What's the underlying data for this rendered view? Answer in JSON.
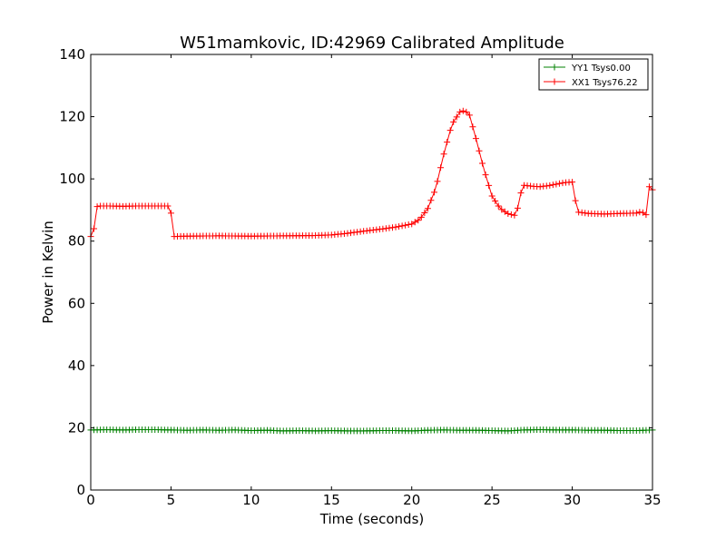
{
  "chart_data": {
    "type": "line",
    "title": "W51mamkovic, ID:42969 Calibrated Amplitude",
    "xlabel": "Time (seconds)",
    "ylabel": "Power in Kelvin",
    "xlim": [
      0,
      35
    ],
    "ylim": [
      0,
      140
    ],
    "xticks": [
      0,
      5,
      10,
      15,
      20,
      25,
      30,
      35
    ],
    "yticks": [
      0,
      20,
      40,
      60,
      80,
      100,
      120,
      140
    ],
    "grid": false,
    "legend_position": "top-right",
    "series": [
      {
        "name": "YY1 Tsys0.00",
        "color": "#008000",
        "marker": "plus",
        "x": [
          0.0,
          1.0,
          2.0,
          3.0,
          4.0,
          5.0,
          6.0,
          7.0,
          8.0,
          9.0,
          10.0,
          11.0,
          12.0,
          13.0,
          14.0,
          15.0,
          16.0,
          17.0,
          18.0,
          19.0,
          20.0,
          21.0,
          22.0,
          23.0,
          24.0,
          25.0,
          26.0,
          27.0,
          28.0,
          29.0,
          30.0,
          31.0,
          32.0,
          33.0,
          34.0,
          35.0
        ],
        "y": [
          19.3,
          19.4,
          19.3,
          19.4,
          19.4,
          19.3,
          19.2,
          19.3,
          19.2,
          19.3,
          19.1,
          19.2,
          19.0,
          19.1,
          19.0,
          19.1,
          19.0,
          19.0,
          19.1,
          19.1,
          19.0,
          19.2,
          19.3,
          19.2,
          19.2,
          19.1,
          19.0,
          19.3,
          19.4,
          19.3,
          19.3,
          19.2,
          19.2,
          19.1,
          19.1,
          19.3
        ]
      },
      {
        "name": "XX1 Tsys76.22",
        "color": "#ff0000",
        "marker": "plus",
        "x": [
          0.0,
          0.2,
          0.35,
          0.5,
          1.0,
          2.0,
          3.0,
          4.0,
          4.8,
          5.0,
          5.15,
          5.3,
          6.0,
          8.0,
          10.0,
          12.0,
          14.0,
          15.0,
          16.0,
          17.0,
          18.0,
          19.0,
          20.0,
          20.5,
          21.0,
          21.5,
          22.0,
          22.5,
          23.0,
          23.3,
          23.6,
          24.0,
          24.5,
          25.0,
          25.5,
          26.0,
          26.5,
          26.7,
          26.9,
          27.2,
          27.6,
          28.0,
          28.5,
          29.0,
          29.5,
          30.0,
          30.2,
          30.4,
          31.0,
          32.0,
          33.0,
          34.0,
          34.3,
          34.6,
          34.8,
          35.0
        ],
        "y": [
          81.5,
          84.0,
          91.0,
          91.3,
          91.3,
          91.2,
          91.3,
          91.3,
          91.3,
          89.0,
          81.5,
          81.5,
          81.6,
          81.7,
          81.6,
          81.7,
          81.8,
          82.0,
          82.5,
          83.2,
          83.8,
          84.5,
          85.5,
          87.0,
          90.5,
          97.0,
          108.0,
          117.5,
          121.5,
          122.0,
          120.5,
          113.0,
          103.0,
          94.5,
          90.5,
          88.8,
          88.2,
          93.0,
          98.0,
          97.8,
          97.6,
          97.5,
          97.8,
          98.3,
          98.8,
          99.0,
          93.0,
          89.3,
          88.9,
          88.7,
          88.9,
          89.0,
          89.5,
          88.5,
          97.5,
          96.5
        ]
      }
    ],
    "tick_labels": {
      "x": [
        "0",
        "5",
        "10",
        "15",
        "20",
        "25",
        "30",
        "35"
      ],
      "y": [
        "0",
        "20",
        "40",
        "60",
        "80",
        "100",
        "120",
        "140"
      ]
    }
  }
}
